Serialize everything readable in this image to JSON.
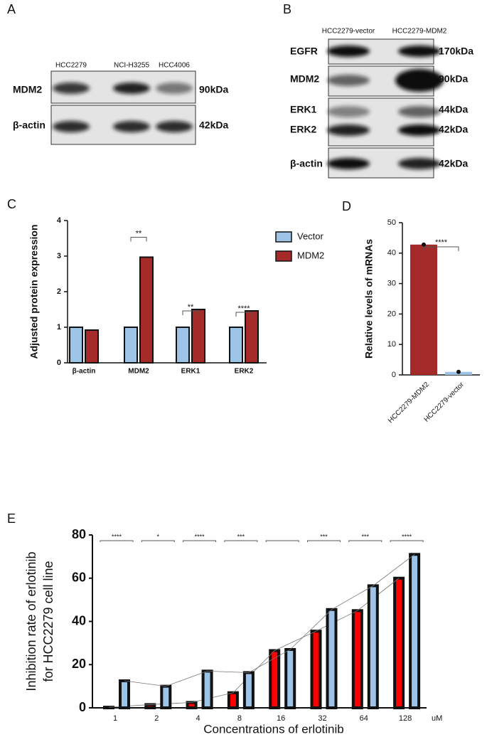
{
  "blots": [
    {
      "panel": "A",
      "lanes": [
        "HCC2279",
        "NCI-H3255",
        "HCC4006"
      ],
      "rows": [
        {
          "label": "MDM2",
          "size": "90kDa"
        },
        {
          "label": "β-actin",
          "size": "42kDa"
        }
      ]
    },
    {
      "panel": "B",
      "lanes": [
        "HCC2279-vector",
        "HCC2279-MDM2"
      ],
      "rows": [
        {
          "label": "EGFR",
          "size": "170kDa"
        },
        {
          "label": "MDM2",
          "size": "90kDa"
        },
        {
          "label": "ERK1",
          "size": "44kDa"
        },
        {
          "label": "ERK2",
          "size": "42kDa"
        },
        {
          "label": "β-actin",
          "size": "42kDa"
        }
      ]
    }
  ],
  "chart_data": [
    {
      "type": "bar",
      "panel": "C",
      "ylabel": "Adjusted protein expression",
      "categories": [
        "β-actin",
        "MDM2",
        "ERK1",
        "ERK2"
      ],
      "series": [
        {
          "name": "Vector",
          "color": "#9dc3e6",
          "values": [
            1,
            1,
            1,
            1
          ]
        },
        {
          "name": "MDM2",
          "color": "#a52a2a",
          "values": [
            0.92,
            2.97,
            1.5,
            1.46
          ]
        }
      ],
      "significance": [
        null,
        "**",
        "**",
        "****"
      ],
      "ylim": [
        0,
        4
      ],
      "yticks": [
        0,
        1,
        2,
        3,
        4
      ],
      "legend": "right"
    },
    {
      "type": "bar",
      "panel": "D",
      "ylabel": "Relative levels of mRNAs",
      "categories": [
        "HCC2279-MDM2",
        "HCC2279-vector"
      ],
      "values": [
        42.8,
        1
      ],
      "colors": [
        "#a52a2a",
        "#9dc3e6"
      ],
      "annotation": "****",
      "ylim": [
        0,
        50
      ],
      "yticks": [
        0,
        10,
        20,
        30,
        40,
        50
      ]
    },
    {
      "type": "bar",
      "panel": "E",
      "ylabel": [
        "Inhibition rate of erlotinib",
        "for HCC2279 cell line"
      ],
      "xlabel": "Concentrations of erlotinib",
      "x_unit": "uM",
      "categories": [
        "1",
        "2",
        "4",
        "8",
        "16",
        "32",
        "64",
        "128"
      ],
      "series": [
        {
          "color": "#ff0000",
          "values": [
            0.3,
            1.5,
            2.5,
            7,
            26.5,
            35.5,
            45,
            60
          ]
        },
        {
          "color": "#9dc3e6",
          "values": [
            12.5,
            10,
            17,
            16.3,
            27,
            45.5,
            56.5,
            71
          ]
        }
      ],
      "significance": [
        "****",
        "*",
        "****",
        "***",
        null,
        "***",
        "***",
        "****"
      ],
      "ylim": [
        0,
        80
      ],
      "yticks": [
        0,
        20,
        40,
        60,
        80
      ]
    }
  ]
}
